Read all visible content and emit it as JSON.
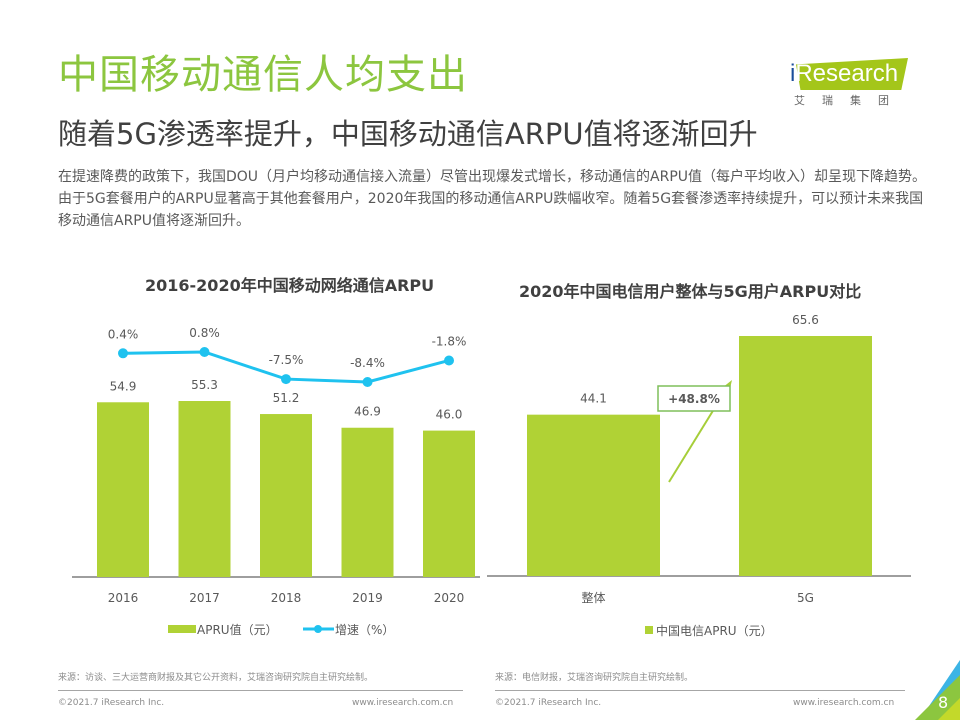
{
  "header": {
    "title": "中国移动通信人均支出",
    "subtitle": "随着5G渗透率提升，中国移动通信ARPU值将逐渐回升",
    "description": "在提速降费的政策下，我国DOU（月户均移动通信接入流量）尽管出现爆发式增长，移动通信的ARPU值（每户平均收入）却呈现下降趋势。由于5G套餐用户的ARPU显著高于其他套餐用户，2020年我国的移动通信ARPU跌幅收窄。随着5G套餐渗透率持续提升，可以预计未来我国移动通信ARPU值将逐渐回升。"
  },
  "logo": {
    "brand_i": "i",
    "brand_rest": "Research",
    "subtitle": "艾瑞集团"
  },
  "colors": {
    "accent_green": "#8cc63f",
    "bar_green": "#b0d235",
    "line_blue": "#1fc2ef",
    "logo_green": "#a4c61a"
  },
  "chart_data": [
    {
      "type": "bar",
      "title": "2016-2020年中国移动网络通信ARPU",
      "categories": [
        "2016",
        "2017",
        "2018",
        "2019",
        "2020"
      ],
      "series": [
        {
          "name": "APRU值（元）",
          "type": "bar",
          "values": [
            54.9,
            55.3,
            51.2,
            46.9,
            46.0
          ],
          "labels": [
            "54.9",
            "55.3",
            "51.2",
            "46.9",
            "46.0"
          ]
        },
        {
          "name": "增速（%）",
          "type": "line",
          "values": [
            0.4,
            0.8,
            -7.5,
            -8.4,
            -1.8
          ],
          "labels": [
            "0.4%",
            "0.8%",
            "-7.5%",
            "-8.4%",
            "-1.8%"
          ]
        }
      ],
      "legend": "bottom",
      "grid": false
    },
    {
      "type": "bar",
      "title": "2020年中国电信用户整体与5G用户ARPU对比",
      "categories": [
        "整体",
        "5G"
      ],
      "series": [
        {
          "name": "中国电信APRU（元）",
          "values": [
            44.1,
            65.6
          ],
          "labels": [
            "44.1",
            "65.6"
          ]
        }
      ],
      "annotation": "+48.8%",
      "legend": "bottom",
      "grid": false
    }
  ],
  "sources": {
    "left": "来源：访谈、三大运营商财报及其它公开资料，艾瑞咨询研究院自主研究绘制。",
    "right": "来源：电信财报，艾瑞咨询研究院自主研究绘制。"
  },
  "footer": {
    "copyright": "©2021.7 iResearch Inc.",
    "url": "www.iresearch.com.cn",
    "page_number": "8"
  }
}
